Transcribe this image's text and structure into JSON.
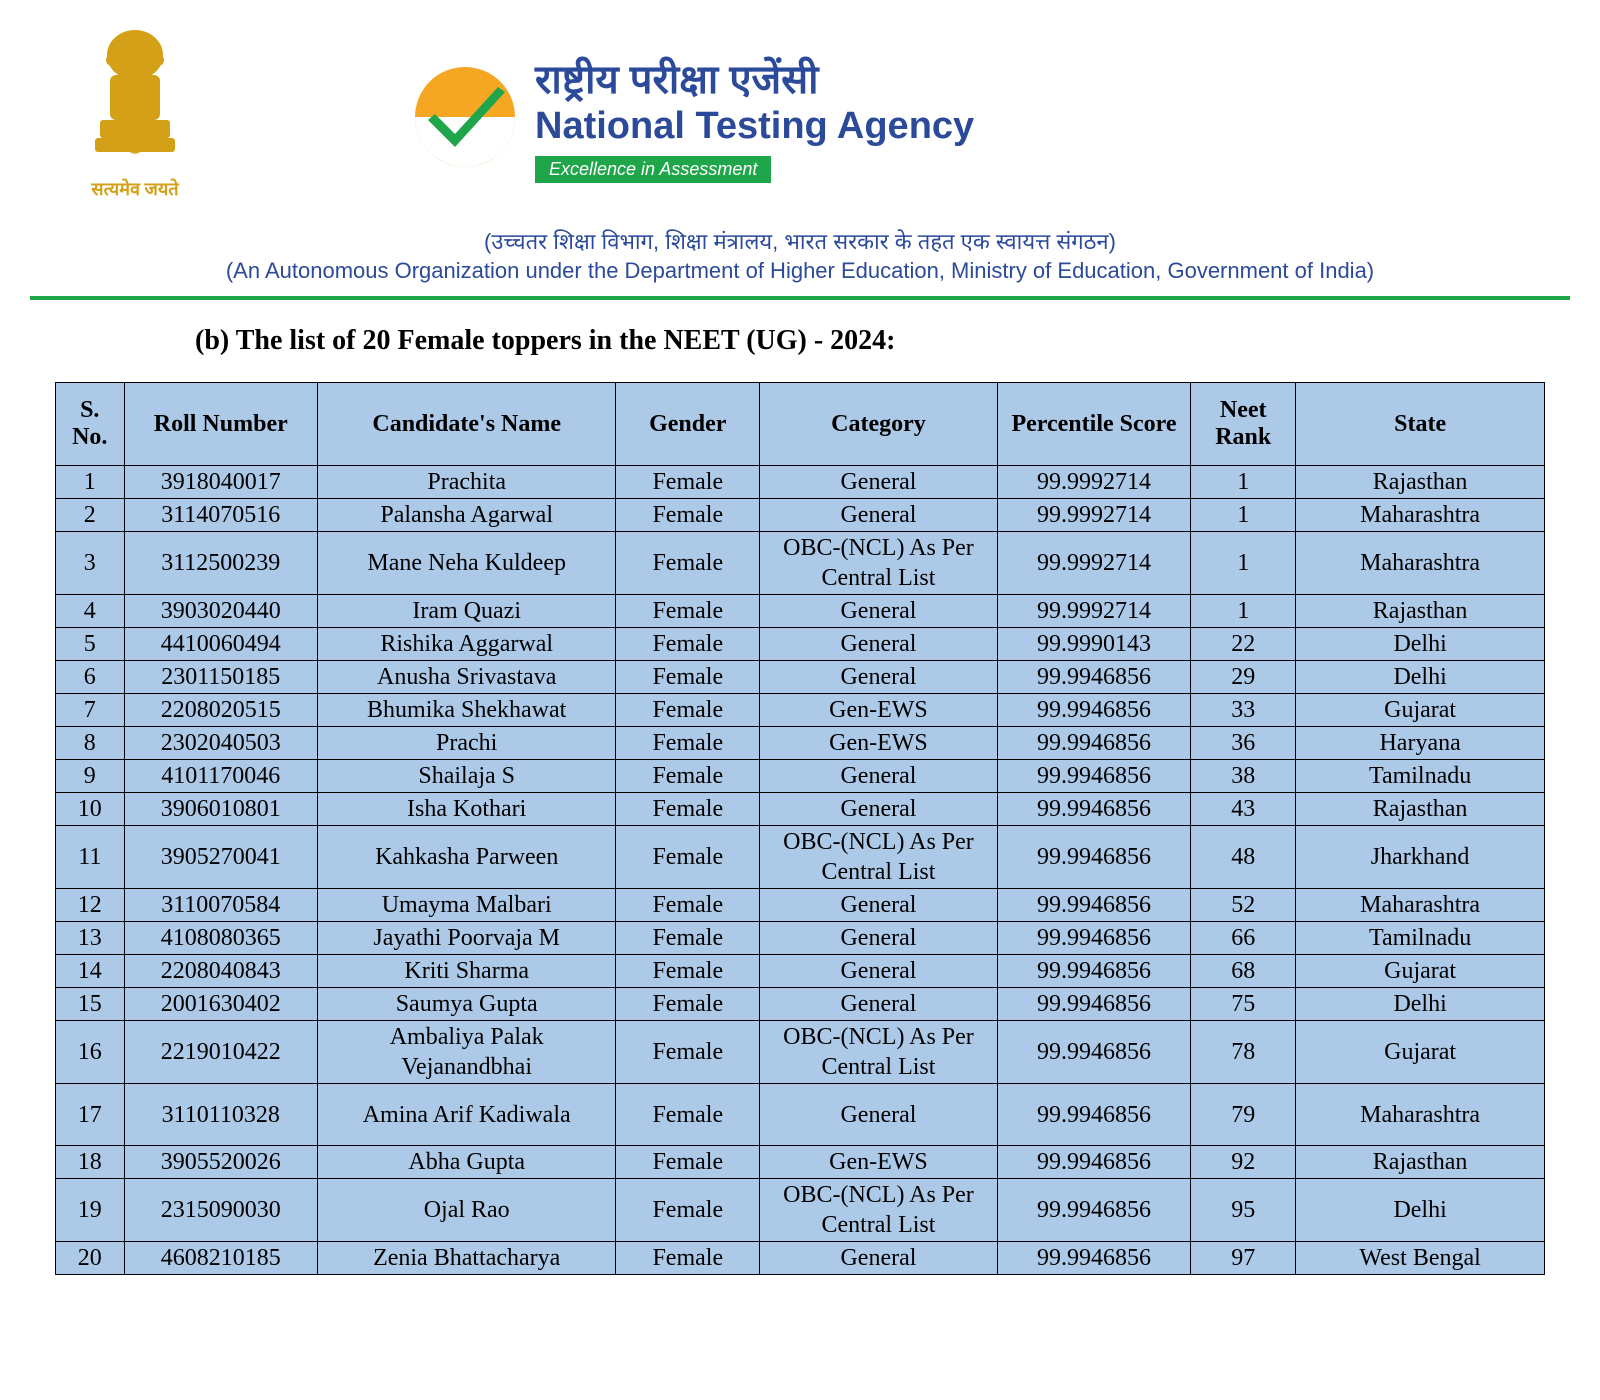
{
  "header": {
    "emblem_caption": "सत्यमेव जयते",
    "nta_hindi": "राष्ट्रीय परीक्षा एजेंसी",
    "nta_english": "National Testing Agency",
    "tagline": "Excellence in Assessment",
    "subtitle_hindi": "(उच्चतर शिक्षा विभाग, शिक्षा मंत्रालय, भारत सरकार के तहत एक स्वायत्त संगठन)",
    "subtitle_english": "(An Autonomous Organization under the Department of Higher Education, Ministry of Education, Government of India)"
  },
  "list_title": "(b) The list of 20 Female toppers in the NEET (UG) - 2024:",
  "table": {
    "columns": [
      "S. No.",
      "Roll Number",
      "Candidate's Name",
      "Gender",
      "Category",
      "Percentile Score",
      "Neet Rank",
      "State"
    ],
    "rows": [
      {
        "sno": "1",
        "roll": "3918040017",
        "name": "Prachita",
        "gender": "Female",
        "category": "General",
        "percentile": "99.9992714",
        "rank": "1",
        "state": "Rajasthan",
        "tall": false
      },
      {
        "sno": "2",
        "roll": "3114070516",
        "name": "Palansha Agarwal",
        "gender": "Female",
        "category": "General",
        "percentile": "99.9992714",
        "rank": "1",
        "state": "Maharashtra",
        "tall": false
      },
      {
        "sno": "3",
        "roll": "3112500239",
        "name": "Mane Neha Kuldeep",
        "gender": "Female",
        "category": "OBC-(NCL) As Per Central List",
        "percentile": "99.9992714",
        "rank": "1",
        "state": "Maharashtra",
        "tall": true
      },
      {
        "sno": "4",
        "roll": "3903020440",
        "name": "Iram Quazi",
        "gender": "Female",
        "category": "General",
        "percentile": "99.9992714",
        "rank": "1",
        "state": "Rajasthan",
        "tall": false
      },
      {
        "sno": "5",
        "roll": "4410060494",
        "name": "Rishika Aggarwal",
        "gender": "Female",
        "category": "General",
        "percentile": "99.9990143",
        "rank": "22",
        "state": "Delhi",
        "tall": false
      },
      {
        "sno": "6",
        "roll": "2301150185",
        "name": "Anusha Srivastava",
        "gender": "Female",
        "category": "General",
        "percentile": "99.9946856",
        "rank": "29",
        "state": "Delhi",
        "tall": false
      },
      {
        "sno": "7",
        "roll": "2208020515",
        "name": "Bhumika Shekhawat",
        "gender": "Female",
        "category": "Gen-EWS",
        "percentile": "99.9946856",
        "rank": "33",
        "state": "Gujarat",
        "tall": false
      },
      {
        "sno": "8",
        "roll": "2302040503",
        "name": "Prachi",
        "gender": "Female",
        "category": "Gen-EWS",
        "percentile": "99.9946856",
        "rank": "36",
        "state": "Haryana",
        "tall": false
      },
      {
        "sno": "9",
        "roll": "4101170046",
        "name": "Shailaja S",
        "gender": "Female",
        "category": "General",
        "percentile": "99.9946856",
        "rank": "38",
        "state": "Tamilnadu",
        "tall": false
      },
      {
        "sno": "10",
        "roll": "3906010801",
        "name": "Isha Kothari",
        "gender": "Female",
        "category": "General",
        "percentile": "99.9946856",
        "rank": "43",
        "state": "Rajasthan",
        "tall": false
      },
      {
        "sno": "11",
        "roll": "3905270041",
        "name": "Kahkasha Parween",
        "gender": "Female",
        "category": "OBC-(NCL) As Per Central List",
        "percentile": "99.9946856",
        "rank": "48",
        "state": "Jharkhand",
        "tall": true
      },
      {
        "sno": "12",
        "roll": "3110070584",
        "name": "Umayma Malbari",
        "gender": "Female",
        "category": "General",
        "percentile": "99.9946856",
        "rank": "52",
        "state": "Maharashtra",
        "tall": false
      },
      {
        "sno": "13",
        "roll": "4108080365",
        "name": "Jayathi Poorvaja M",
        "gender": "Female",
        "category": "General",
        "percentile": "99.9946856",
        "rank": "66",
        "state": "Tamilnadu",
        "tall": false
      },
      {
        "sno": "14",
        "roll": "2208040843",
        "name": "Kriti Sharma",
        "gender": "Female",
        "category": "General",
        "percentile": "99.9946856",
        "rank": "68",
        "state": "Gujarat",
        "tall": false
      },
      {
        "sno": "15",
        "roll": "2001630402",
        "name": "Saumya Gupta",
        "gender": "Female",
        "category": "General",
        "percentile": "99.9946856",
        "rank": "75",
        "state": "Delhi",
        "tall": false
      },
      {
        "sno": "16",
        "roll": "2219010422",
        "name": "Ambaliya Palak Vejanandbhai",
        "gender": "Female",
        "category": "OBC-(NCL) As Per Central List",
        "percentile": "99.9946856",
        "rank": "78",
        "state": "Gujarat",
        "tall": true
      },
      {
        "sno": "17",
        "roll": "3110110328",
        "name": "Amina Arif Kadiwala",
        "gender": "Female",
        "category": "General",
        "percentile": "99.9946856",
        "rank": "79",
        "state": "Maharashtra",
        "tall": true
      },
      {
        "sno": "18",
        "roll": "3905520026",
        "name": "Abha Gupta",
        "gender": "Female",
        "category": "Gen-EWS",
        "percentile": "99.9946856",
        "rank": "92",
        "state": "Rajasthan",
        "tall": false
      },
      {
        "sno": "19",
        "roll": "2315090030",
        "name": "Ojal Rao",
        "gender": "Female",
        "category": "OBC-(NCL) As Per Central List",
        "percentile": "99.9946856",
        "rank": "95",
        "state": "Delhi",
        "tall": true
      },
      {
        "sno": "20",
        "roll": "4608210185",
        "name": "Zenia Bhattacharya",
        "gender": "Female",
        "category": "General",
        "percentile": "99.9946856",
        "rank": "97",
        "state": "West Bengal",
        "tall": false
      }
    ]
  },
  "colors": {
    "table_bg": "#accae8",
    "brand_blue": "#2b4a9a",
    "brand_green": "#1fa54a",
    "emblem_gold": "#d4a017",
    "logo_orange": "#f5a623"
  }
}
